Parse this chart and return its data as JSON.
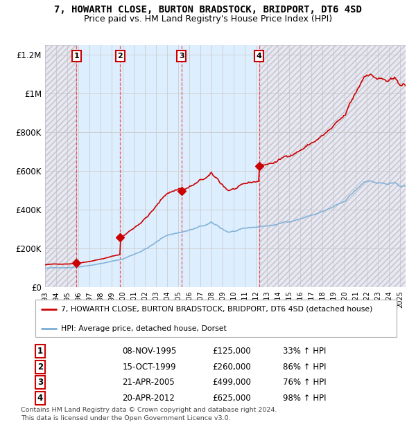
{
  "title1": "7, HOWARTH CLOSE, BURTON BRADSTOCK, BRIDPORT, DT6 4SD",
  "title2": "Price paid vs. HM Land Registry's House Price Index (HPI)",
  "legend_line1": "7, HOWARTH CLOSE, BURTON BRADSTOCK, BRIDPORT, DT6 4SD (detached house)",
  "legend_line2": "HPI: Average price, detached house, Dorset",
  "footer1": "Contains HM Land Registry data © Crown copyright and database right 2024.",
  "footer2": "This data is licensed under the Open Government Licence v3.0.",
  "sale_dates_year": [
    1995.85,
    1999.79,
    2005.3,
    2012.3
  ],
  "sale_prices": [
    125000,
    260000,
    499000,
    625000
  ],
  "sale_labels": [
    "1",
    "2",
    "3",
    "4"
  ],
  "sale_table": [
    [
      "1",
      "08-NOV-1995",
      "£125,000",
      "33% ↑ HPI"
    ],
    [
      "2",
      "15-OCT-1999",
      "£260,000",
      "86% ↑ HPI"
    ],
    [
      "3",
      "21-APR-2005",
      "£499,000",
      "76% ↑ HPI"
    ],
    [
      "4",
      "20-APR-2012",
      "£625,000",
      "98% ↑ HPI"
    ]
  ],
  "ylim": [
    0,
    1250000
  ],
  "xlim_start": 1993.0,
  "xlim_end": 2025.5,
  "hpi_color": "#7aadd4",
  "price_color": "#cc0000",
  "bg_shaded_color": "#ddeeff",
  "vline_color": "#ee4444",
  "grid_color": "#cccccc",
  "title_fontsize": 10,
  "subtitle_fontsize": 9
}
